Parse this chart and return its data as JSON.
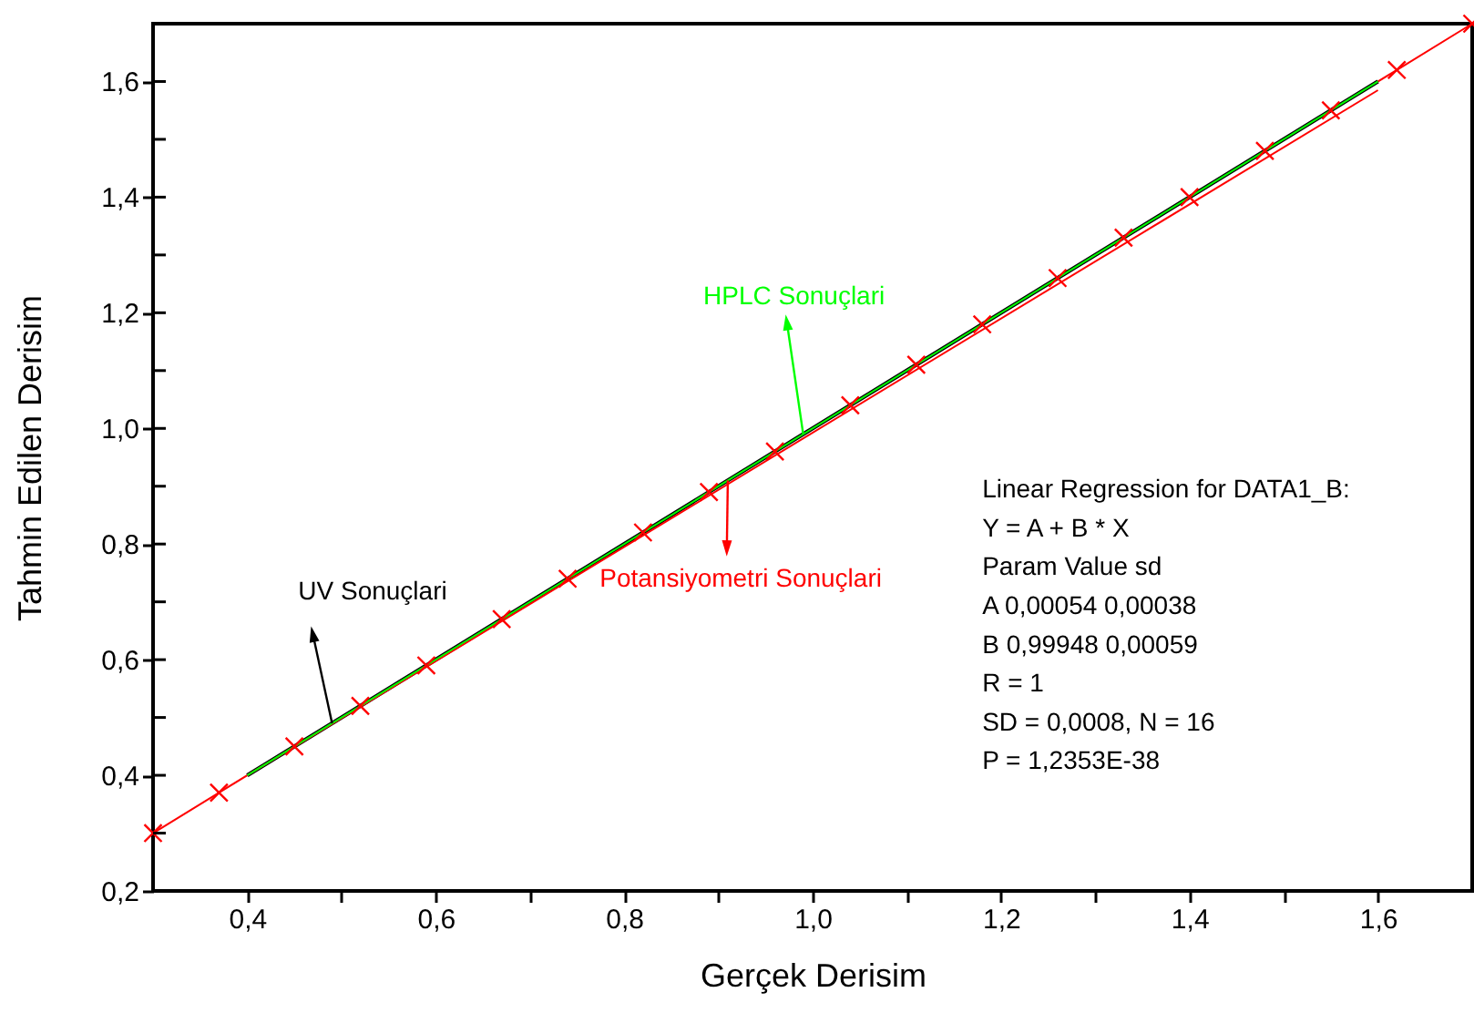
{
  "chart_data": {
    "type": "line",
    "xlabel": "Gerçek Derisim",
    "ylabel": "Tahmin Edilen Derisim",
    "xlim": [
      0.3,
      1.7
    ],
    "ylim": [
      0.2,
      1.7
    ],
    "xticks": [
      {
        "value": 0.4,
        "label": "0,4"
      },
      {
        "value": 0.5,
        "label": null
      },
      {
        "value": 0.6,
        "label": "0,6"
      },
      {
        "value": 0.7,
        "label": null
      },
      {
        "value": 0.8,
        "label": "0,8"
      },
      {
        "value": 0.9,
        "label": null
      },
      {
        "value": 1.0,
        "label": "1,0"
      },
      {
        "value": 1.1,
        "label": null
      },
      {
        "value": 1.2,
        "label": "1,2"
      },
      {
        "value": 1.3,
        "label": null
      },
      {
        "value": 1.4,
        "label": "1,4"
      },
      {
        "value": 1.5,
        "label": null
      },
      {
        "value": 1.6,
        "label": "1,6"
      }
    ],
    "yticks": [
      {
        "value": 0.2,
        "label": "0,2"
      },
      {
        "value": 0.3,
        "label": null
      },
      {
        "value": 0.4,
        "label": "0,4"
      },
      {
        "value": 0.5,
        "label": null
      },
      {
        "value": 0.6,
        "label": "0,6"
      },
      {
        "value": 0.7,
        "label": null
      },
      {
        "value": 0.8,
        "label": "0,8"
      },
      {
        "value": 0.9,
        "label": null
      },
      {
        "value": 1.0,
        "label": "1,0"
      },
      {
        "value": 1.1,
        "label": null
      },
      {
        "value": 1.2,
        "label": "1,2"
      },
      {
        "value": 1.3,
        "label": null
      },
      {
        "value": 1.4,
        "label": "1,4"
      },
      {
        "value": 1.5,
        "label": null
      },
      {
        "value": 1.6,
        "label": "1,6"
      }
    ],
    "grid": false,
    "series": [
      {
        "type": "line",
        "color": "#00ff00",
        "marker": "none",
        "x": [
          0.4,
          1.6
        ],
        "values": [
          0.4,
          1.6
        ]
      },
      {
        "type": "line",
        "color": "#ff0000",
        "marker": "none",
        "x": [
          0.4,
          1.6
        ],
        "values": [
          0.4,
          1.585
        ]
      },
      {
        "type": "line",
        "color": "#000000",
        "marker": "none",
        "x": [
          0.4,
          1.6
        ],
        "values": [
          0.4,
          1.6
        ]
      },
      {
        "type": "line",
        "color": "#ff0000",
        "marker": "cross",
        "x": [
          0.3,
          0.37,
          0.45,
          0.52,
          0.59,
          0.67,
          0.74,
          0.82,
          0.89,
          0.96,
          1.04,
          1.11,
          1.18,
          1.26,
          1.33,
          1.4,
          1.48,
          1.55,
          1.62,
          1.7
        ],
        "values": [
          0.3,
          0.37,
          0.45,
          0.52,
          0.59,
          0.67,
          0.74,
          0.82,
          0.89,
          0.96,
          1.04,
          1.11,
          1.18,
          1.26,
          1.33,
          1.4,
          1.48,
          1.55,
          1.62,
          1.7
        ]
      }
    ],
    "annotations": [
      {
        "text": "HPLC Sonuçlari",
        "x": 0.99,
        "y": 0.99
      },
      {
        "text": "Potansiyometri Sonuçlari",
        "x": 0.91,
        "y": 0.91
      },
      {
        "text": "UV Sonuçlari",
        "x": 0.49,
        "y": 0.49
      },
      "Linear Regression for DATA1_B:",
      "Y = A + B * X",
      "Param  Value  sd",
      "A  0,00054  0,00038",
      "B  0,99948  0,00059",
      "R  = 1",
      "SD = 0,0008, N = 16",
      "P = 1,2353E-38"
    ]
  }
}
